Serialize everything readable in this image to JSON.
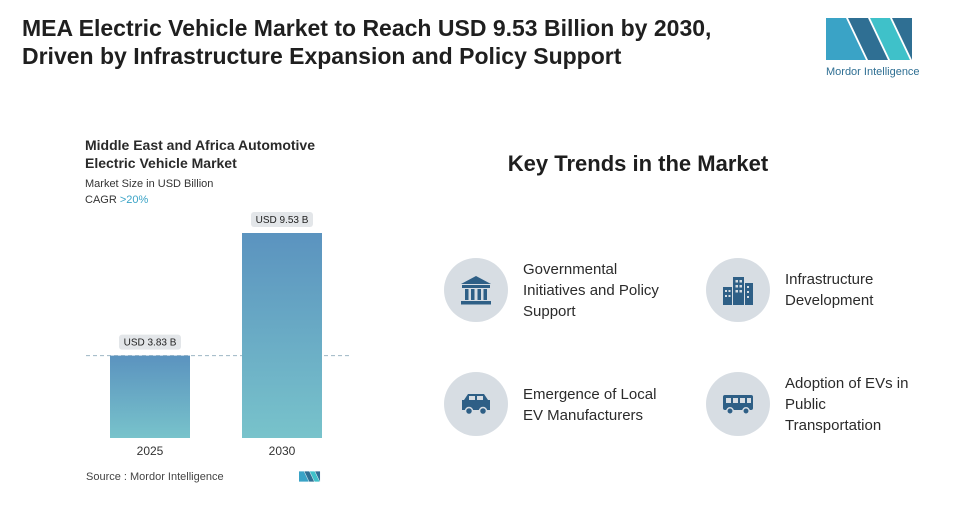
{
  "header": {
    "title_line1": "MEA Electric Vehicle Market to Reach USD 9.53 Billion by 2030,",
    "title_line2": "Driven by Infrastructure Expansion and Policy Support"
  },
  "brand": {
    "logo_text": "Mordor Intelligence",
    "accent": "#3aa3c6",
    "dark": "#2f6f93"
  },
  "chart": {
    "title_line1": "Middle East and Africa Automotive",
    "title_line2": "Electric Vehicle Market",
    "subtitle": "Market Size in USD Billion",
    "cagr_label": "CAGR ",
    "cagr_value": ">20%"
  },
  "chart_data": {
    "type": "bar",
    "title": "Middle East and Africa Automotive Electric Vehicle Market",
    "ylabel": "Market Size in USD Billion",
    "categories": [
      "2025",
      "2030"
    ],
    "values": [
      3.83,
      9.53
    ],
    "data_labels": [
      "USD 3.83 B",
      "USD 9.53 B"
    ],
    "ylim": [
      0,
      9.53
    ],
    "reference_line_value": 3.83,
    "colors": {
      "bar_top": "#5b93bf",
      "bar_bottom": "#78c3cb"
    }
  },
  "source": {
    "text": "Source : Mordor Intelligence"
  },
  "trends": {
    "title": "Key Trends in the Market",
    "items": [
      {
        "icon": "government-building-icon",
        "label_lines": [
          "Governmental",
          "Initiatives and Policy",
          "Support"
        ]
      },
      {
        "icon": "city-buildings-icon",
        "label_lines": [
          "Infrastructure",
          "Development"
        ]
      },
      {
        "icon": "car-icon",
        "label_lines": [
          "Emergence of Local",
          "EV Manufacturers"
        ]
      },
      {
        "icon": "bus-icon",
        "label_lines": [
          "Adoption of EVs in",
          "Public",
          "Transportation"
        ]
      }
    ]
  }
}
